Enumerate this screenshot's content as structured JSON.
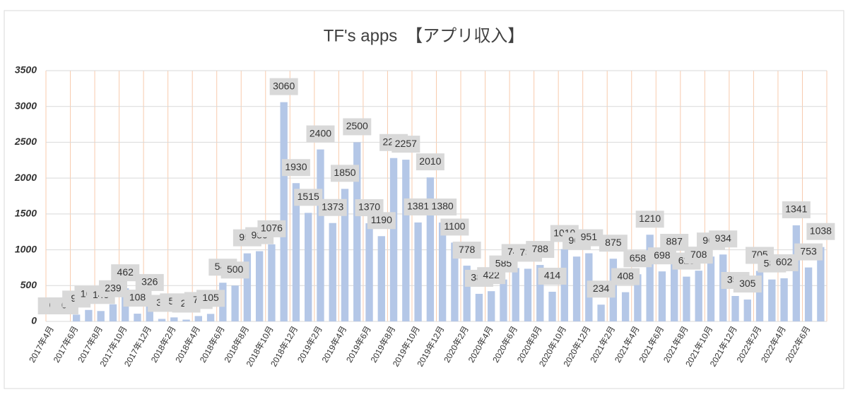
{
  "chart_data": {
    "type": "bar",
    "title": "TF's apps　【アプリ収入】",
    "categories": [
      "2017年4月",
      null,
      "2017年6月",
      null,
      "2017年8月",
      null,
      "2017年10月",
      null,
      "2017年12月",
      null,
      "2018年2月",
      null,
      "2018年4月",
      null,
      "2018年6月",
      null,
      "2018年8月",
      null,
      "2018年10月",
      null,
      "2018年12月",
      null,
      "2019年2月",
      null,
      "2019年4月",
      null,
      "2019年6月",
      null,
      "2019年8月",
      null,
      "2019年10月",
      null,
      "2019年12月",
      null,
      "2020年2月",
      null,
      "2020年4月",
      null,
      "2020年6月",
      null,
      "2020年8月",
      null,
      "2020年10月",
      null,
      "2020年12月",
      null,
      "2021年2月",
      null,
      "2021年4月",
      null,
      "2021年6月",
      null,
      "2021年8月",
      null,
      "2021年10月",
      null,
      "2021年12月",
      null,
      "2022年2月",
      null,
      "2022年4月",
      null,
      "2022年6月",
      null
    ],
    "values": [
      0,
      0,
      95,
      160,
      145,
      239,
      462,
      108,
      326,
      35,
      56,
      25,
      75,
      105,
      540,
      500,
      950,
      980,
      1076,
      3060,
      1930,
      1515,
      2400,
      1373,
      1850,
      2500,
      1370,
      1190,
      2280,
      2257,
      1381,
      2010,
      1380,
      1100,
      778,
      385,
      422,
      585,
      745,
      735,
      788,
      414,
      1010,
      905,
      951,
      234,
      875,
      408,
      658,
      1210,
      698,
      887,
      625,
      708,
      905,
      934,
      355,
      305,
      705,
      585,
      602,
      1341,
      753,
      1038
    ],
    "color": "#b4c7e7",
    "ylim": [
      0,
      3500
    ],
    "yticks": [
      0,
      500,
      1000,
      1500,
      2000,
      2500,
      3000,
      3500
    ],
    "grid": true
  }
}
